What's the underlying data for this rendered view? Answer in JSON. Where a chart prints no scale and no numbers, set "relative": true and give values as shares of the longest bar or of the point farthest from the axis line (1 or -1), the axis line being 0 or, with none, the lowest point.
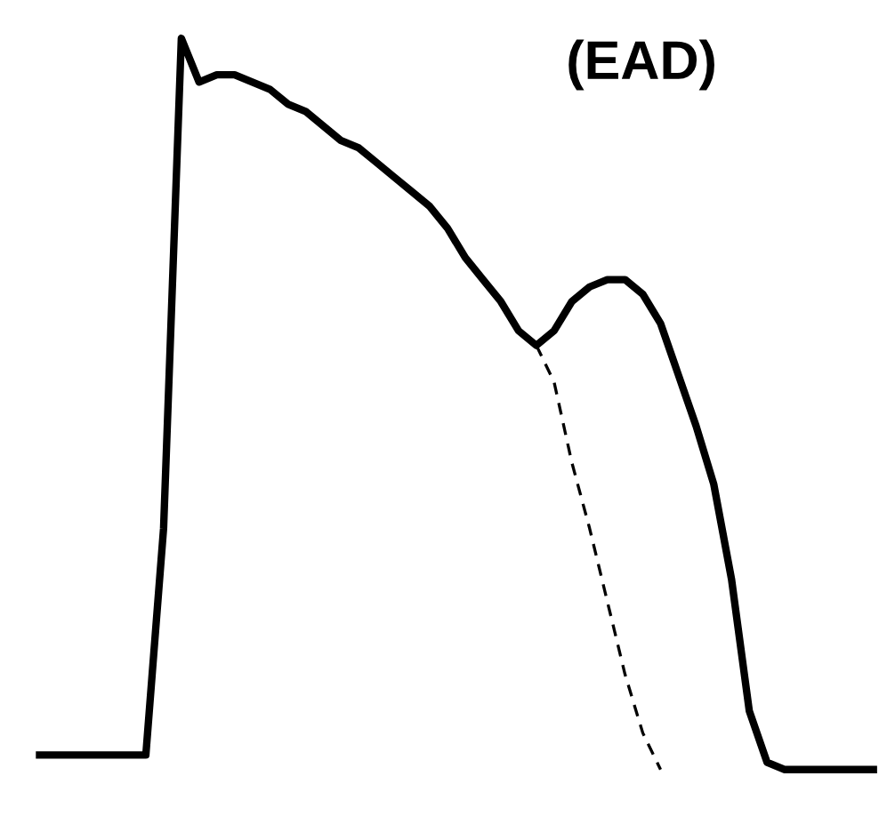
{
  "chart_data": {
    "type": "line",
    "relative": true,
    "annotations": [
      "(EAD)"
    ],
    "legend": false,
    "grid": false,
    "tick_labels": false,
    "marker": "none",
    "categories": [
      null,
      null,
      null,
      null,
      null,
      null,
      null,
      null,
      null,
      null,
      null,
      null,
      null,
      null,
      null,
      null,
      null,
      null,
      null,
      null,
      null,
      null,
      null,
      null,
      null,
      null,
      null,
      null,
      null,
      null,
      null,
      null,
      null,
      null,
      null,
      null,
      null,
      null,
      null,
      null,
      null,
      null,
      null,
      null,
      null,
      null,
      null,
      null
    ],
    "series": [
      {
        "color": "#000000",
        "line_style": "solid",
        "values": [
          0.02,
          0.02,
          0.02,
          0.02,
          0.02,
          0.02,
          0.02,
          0.33,
          1.0,
          0.94,
          0.95,
          0.95,
          0.94,
          0.93,
          0.91,
          0.9,
          0.88,
          0.86,
          0.85,
          0.83,
          0.81,
          0.79,
          0.77,
          0.74,
          0.7,
          0.67,
          0.64,
          0.6,
          0.58,
          0.6,
          0.64,
          0.66,
          0.67,
          0.67,
          0.65,
          0.61,
          0.54,
          0.47,
          0.39,
          0.26,
          0.08,
          0.01,
          0.0,
          0.0,
          0.0,
          0.0,
          0.0,
          0.0
        ]
      },
      {
        "color": "#000000",
        "line_style": "dashed",
        "values": [
          null,
          null,
          null,
          null,
          null,
          null,
          null,
          null,
          null,
          null,
          null,
          null,
          null,
          null,
          null,
          null,
          null,
          null,
          null,
          null,
          null,
          null,
          null,
          null,
          null,
          null,
          null,
          null,
          0.58,
          0.53,
          0.42,
          0.33,
          0.23,
          0.13,
          0.05,
          0.0,
          null,
          null,
          null,
          null,
          null,
          null,
          null,
          null,
          null,
          null,
          null,
          null
        ]
      }
    ]
  }
}
